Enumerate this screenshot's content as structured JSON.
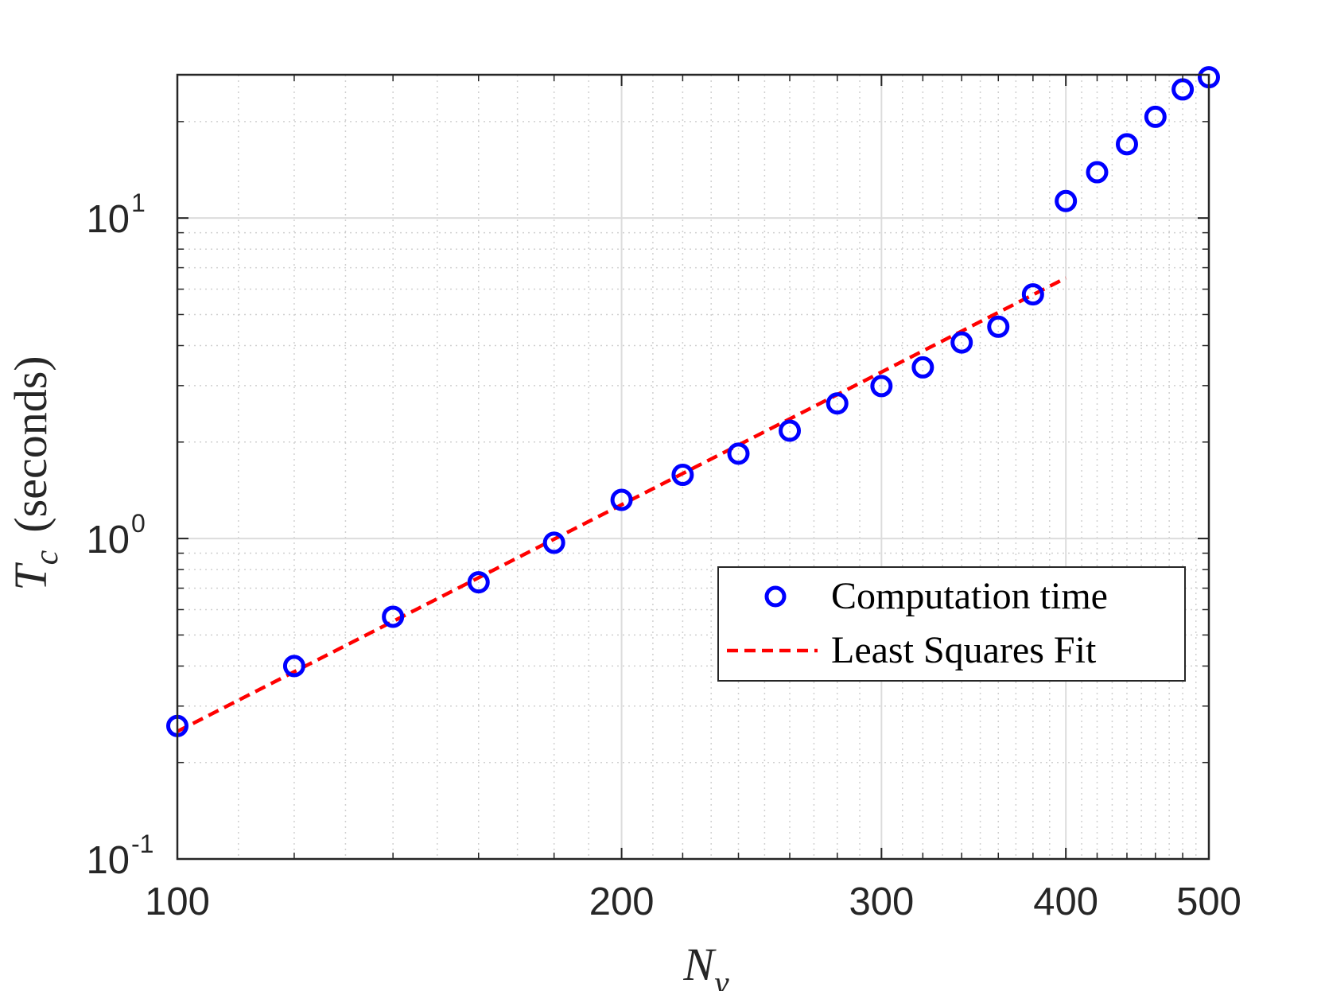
{
  "chart_data": {
    "type": "scatter",
    "xscale": "log",
    "yscale": "log",
    "xlim": [
      100,
      500
    ],
    "ylim": [
      0.1,
      28
    ],
    "grid": true,
    "minor_grid": true,
    "xlabel": {
      "symbol": "N",
      "subscript": "y"
    },
    "ylabel": {
      "symbol": "T",
      "subscript": "c",
      "text": "(seconds)"
    },
    "x_ticks": [
      {
        "value": 100,
        "label": "100"
      },
      {
        "value": 200,
        "label": "200"
      },
      {
        "value": 300,
        "label": "300"
      },
      {
        "value": 400,
        "label": "400"
      },
      {
        "value": 500,
        "label": "500"
      }
    ],
    "y_ticks": [
      {
        "value": 0.1,
        "base": "10",
        "exp": "-1"
      },
      {
        "value": 1,
        "base": "10",
        "exp": "0"
      },
      {
        "value": 10,
        "base": "10",
        "exp": "1"
      }
    ],
    "legend_position": "right-center",
    "series": [
      {
        "name": "Computation time",
        "kind": "markers",
        "color": "#0000ff",
        "x": [
          100,
          120,
          140,
          160,
          180,
          200,
          220,
          240,
          260,
          280,
          300,
          320,
          340,
          360,
          380,
          400,
          420,
          440,
          460,
          480,
          500
        ],
        "y": [
          0.26,
          0.4,
          0.57,
          0.73,
          0.97,
          1.32,
          1.58,
          1.84,
          2.17,
          2.64,
          2.99,
          3.42,
          4.09,
          4.58,
          5.78,
          11.3,
          13.9,
          17.0,
          20.7,
          25.2,
          27.5
        ]
      },
      {
        "name": "Least Squares Fit",
        "kind": "dashed-line",
        "color": "#ff0000",
        "x": [
          100,
          400
        ],
        "y": [
          0.25,
          6.5
        ]
      }
    ]
  }
}
